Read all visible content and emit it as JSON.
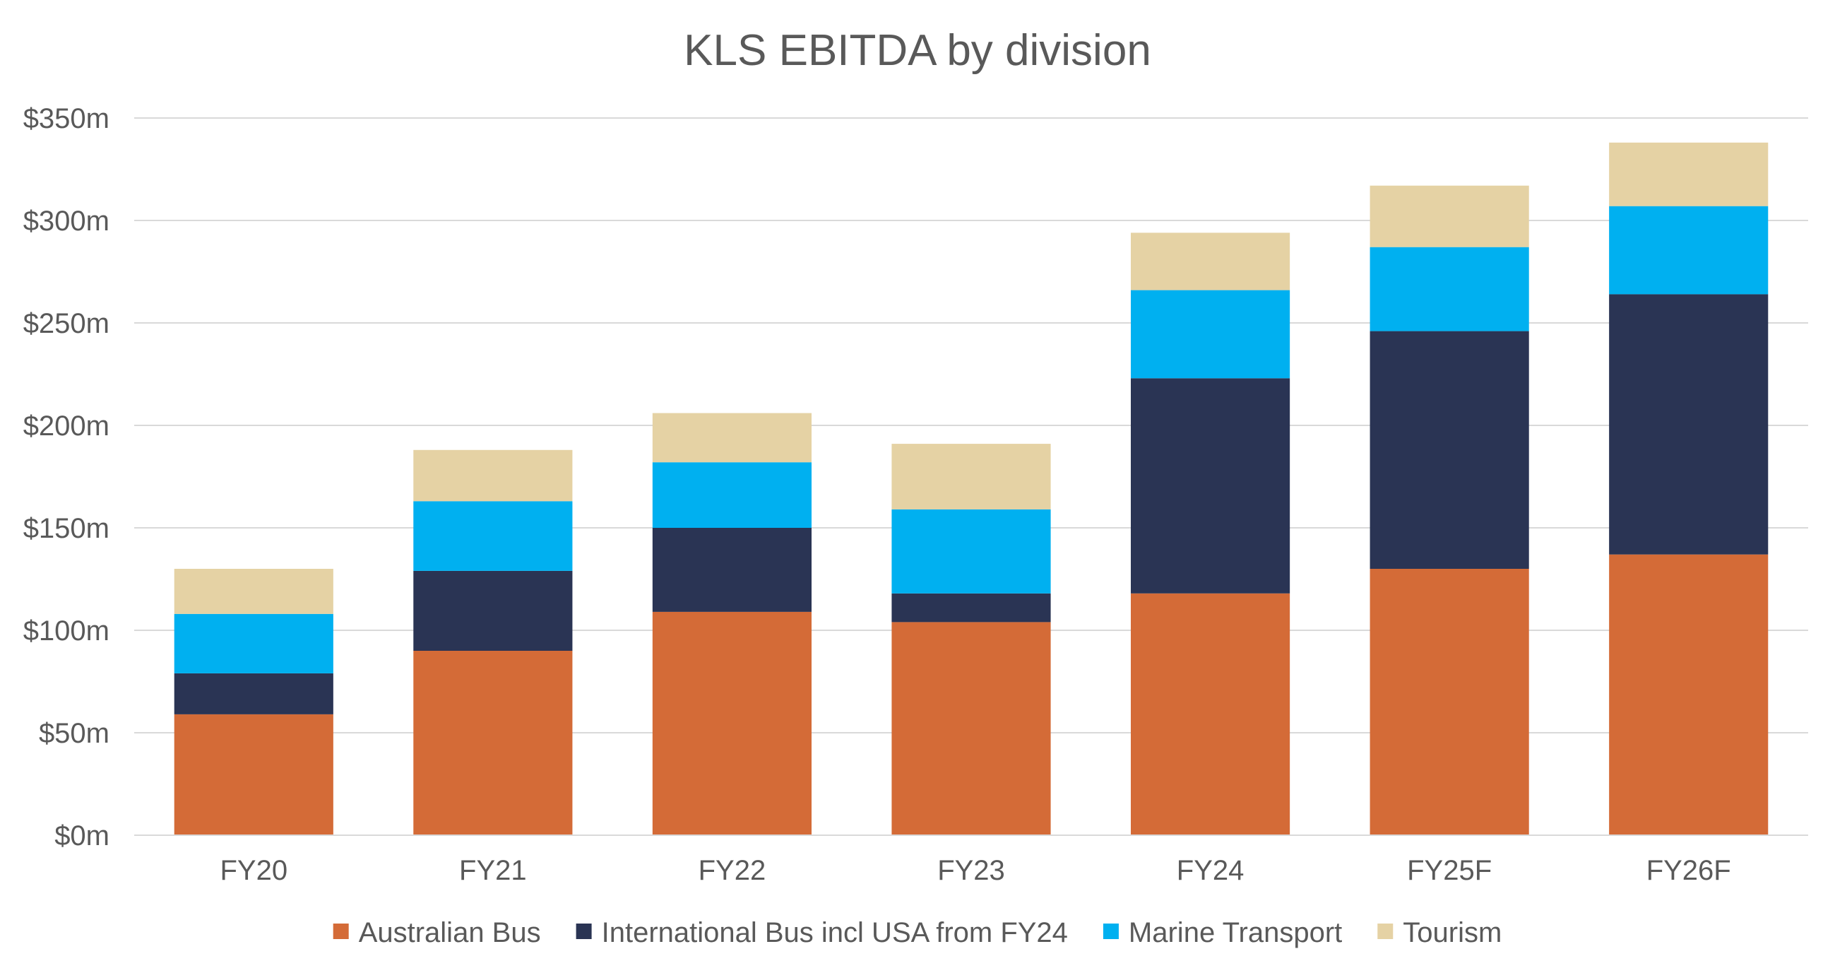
{
  "chart_data": {
    "type": "bar",
    "stacked": true,
    "title": "KLS EBITDA by division",
    "xlabel": "",
    "ylabel": "",
    "categories": [
      "FY20",
      "FY21",
      "FY22",
      "FY23",
      "FY24",
      "FY25F",
      "FY26F"
    ],
    "series": [
      {
        "name": "Australian Bus",
        "color": "#D46B37",
        "values": [
          59,
          90,
          109,
          104,
          118,
          130,
          137
        ]
      },
      {
        "name": "International Bus incl USA from FY24",
        "color": "#2A3454",
        "values": [
          20,
          39,
          41,
          14,
          105,
          116,
          127
        ]
      },
      {
        "name": "Marine Transport",
        "color": "#00B0F0",
        "values": [
          29,
          34,
          32,
          41,
          43,
          41,
          43
        ]
      },
      {
        "name": "Tourism",
        "color": "#E5D2A4",
        "values": [
          22,
          25,
          24,
          32,
          28,
          30,
          31
        ]
      }
    ],
    "ylim": [
      0,
      350
    ],
    "yticks": [
      0,
      50,
      100,
      150,
      200,
      250,
      300,
      350
    ],
    "ytick_labels": [
      "$0m",
      "$50m",
      "$100m",
      "$150m",
      "$200m",
      "$250m",
      "$300m",
      "$350m"
    ],
    "grid": true,
    "legend_position": "bottom"
  }
}
